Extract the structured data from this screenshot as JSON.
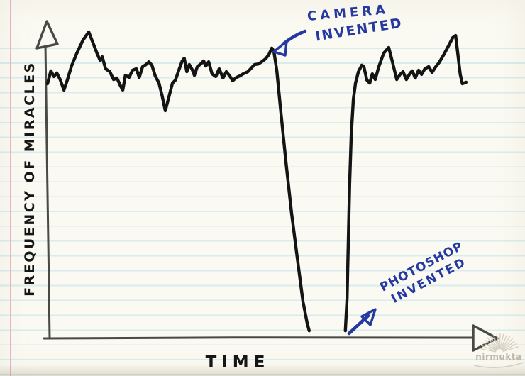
{
  "chart_data": {
    "type": "line",
    "title": "",
    "x_axis": {
      "label": "TIME",
      "ticks": []
    },
    "y_axis": {
      "label": "FREQUENCY OF MIRACLES",
      "ticks": []
    },
    "value_range": [
      0,
      1
    ],
    "grid": "ruled notebook paper background, no chart grid",
    "series": [
      {
        "name": "frequency of miracles over time",
        "color": "#141414",
        "style": "hand-drawn noisy line",
        "segments": [
          [
            [
              0.0,
              0.827
            ],
            [
              0.008,
              0.87
            ],
            [
              0.015,
              0.851
            ],
            [
              0.022,
              0.863
            ],
            [
              0.03,
              0.841
            ],
            [
              0.039,
              0.806
            ],
            [
              0.047,
              0.839
            ],
            [
              0.057,
              0.886
            ],
            [
              0.069,
              0.927
            ],
            [
              0.084,
              0.972
            ],
            [
              0.098,
              1.0
            ],
            [
              0.108,
              0.964
            ],
            [
              0.118,
              0.927
            ],
            [
              0.125,
              0.905
            ],
            [
              0.13,
              0.917
            ],
            [
              0.138,
              0.877
            ],
            [
              0.148,
              0.867
            ],
            [
              0.157,
              0.841
            ],
            [
              0.165,
              0.846
            ],
            [
              0.174,
              0.818
            ],
            [
              0.179,
              0.806
            ],
            [
              0.185,
              0.855
            ],
            [
              0.194,
              0.848
            ],
            [
              0.202,
              0.872
            ],
            [
              0.211,
              0.877
            ],
            [
              0.218,
              0.848
            ],
            [
              0.226,
              0.884
            ],
            [
              0.234,
              0.891
            ],
            [
              0.241,
              0.9
            ],
            [
              0.248,
              0.889
            ],
            [
              0.256,
              0.853
            ],
            [
              0.265,
              0.829
            ],
            [
              0.272,
              0.789
            ],
            [
              0.28,
              0.737
            ],
            [
              0.288,
              0.78
            ],
            [
              0.297,
              0.829
            ],
            [
              0.304,
              0.839
            ],
            [
              0.312,
              0.872
            ],
            [
              0.32,
              0.903
            ],
            [
              0.325,
              0.912
            ],
            [
              0.331,
              0.867
            ],
            [
              0.337,
              0.891
            ],
            [
              0.344,
              0.874
            ],
            [
              0.349,
              0.855
            ],
            [
              0.356,
              0.884
            ],
            [
              0.364,
              0.893
            ],
            [
              0.371,
              0.903
            ],
            [
              0.376,
              0.886
            ],
            [
              0.383,
              0.9
            ],
            [
              0.391,
              0.86
            ],
            [
              0.4,
              0.851
            ],
            [
              0.408,
              0.877
            ],
            [
              0.417,
              0.846
            ],
            [
              0.425,
              0.867
            ],
            [
              0.433,
              0.853
            ],
            [
              0.44,
              0.837
            ],
            [
              0.449,
              0.848
            ],
            [
              0.457,
              0.853
            ],
            [
              0.465,
              0.86
            ],
            [
              0.476,
              0.867
            ],
            [
              0.484,
              0.879
            ],
            [
              0.492,
              0.891
            ],
            [
              0.501,
              0.893
            ],
            [
              0.509,
              0.9
            ],
            [
              0.518,
              0.91
            ],
            [
              0.526,
              0.924
            ],
            [
              0.533,
              0.946
            ],
            [
              0.538,
              0.936
            ],
            [
              0.545,
              0.87
            ],
            [
              0.555,
              0.727
            ],
            [
              0.567,
              0.562
            ],
            [
              0.58,
              0.396
            ],
            [
              0.594,
              0.242
            ],
            [
              0.607,
              0.1
            ],
            [
              0.617,
              0.028
            ],
            [
              0.622,
              0.002
            ]
          ],
          [
            [
              0.708,
              0.002
            ],
            [
              0.712,
              0.111
            ],
            [
              0.715,
              0.301
            ],
            [
              0.718,
              0.49
            ],
            [
              0.722,
              0.656
            ],
            [
              0.727,
              0.775
            ],
            [
              0.732,
              0.829
            ],
            [
              0.739,
              0.867
            ],
            [
              0.747,
              0.889
            ],
            [
              0.752,
              0.884
            ],
            [
              0.759,
              0.839
            ],
            [
              0.766,
              0.829
            ],
            [
              0.772,
              0.86
            ],
            [
              0.779,
              0.841
            ],
            [
              0.787,
              0.882
            ],
            [
              0.799,
              0.929
            ],
            [
              0.811,
              0.948
            ],
            [
              0.82,
              0.898
            ],
            [
              0.83,
              0.841
            ],
            [
              0.838,
              0.858
            ],
            [
              0.845,
              0.867
            ],
            [
              0.853,
              0.841
            ],
            [
              0.862,
              0.863
            ],
            [
              0.867,
              0.87
            ],
            [
              0.874,
              0.846
            ],
            [
              0.882,
              0.872
            ],
            [
              0.889,
              0.858
            ],
            [
              0.897,
              0.877
            ],
            [
              0.906,
              0.884
            ],
            [
              0.914,
              0.865
            ],
            [
              0.922,
              0.882
            ],
            [
              0.931,
              0.898
            ],
            [
              0.941,
              0.922
            ],
            [
              0.953,
              0.953
            ],
            [
              0.963,
              0.981
            ],
            [
              0.97,
              0.988
            ],
            [
              0.975,
              0.929
            ],
            [
              0.981,
              0.858
            ],
            [
              0.986,
              0.827
            ],
            [
              0.995,
              0.832
            ]
          ]
        ]
      }
    ],
    "annotations": [
      {
        "label": "CAMERA INVENTED",
        "lines": [
          "CAMERA",
          "INVENTED"
        ],
        "color": "#2539a0",
        "target": {
          "t": 0.536,
          "f": 0.94
        },
        "arrow_direction": "points down-left at the last peak before the drop"
      },
      {
        "label": "PHOTOSHOP INVENTED",
        "lines": [
          "PHOTOSHOP",
          "INVENTED"
        ],
        "color": "#2539a0",
        "target": {
          "t": 0.708,
          "f": 0.0
        },
        "arrow_direction": "points up-right from the spot where the line rises from zero"
      }
    ],
    "description": "Frequency of miracles is high and noisy until the camera is invented, then drops to zero; it stays at zero until Photoshop is invented, after which it returns to high noisy levels."
  },
  "watermark": {
    "text": "nirmukta"
  },
  "colors": {
    "annotation_blue": "#2539a0",
    "curve_black": "#141414",
    "axis_gray": "#4a4a45",
    "paper": "#fbfaf2",
    "rule_line": "#d8eced",
    "margin_line": "#e6b3d2"
  }
}
